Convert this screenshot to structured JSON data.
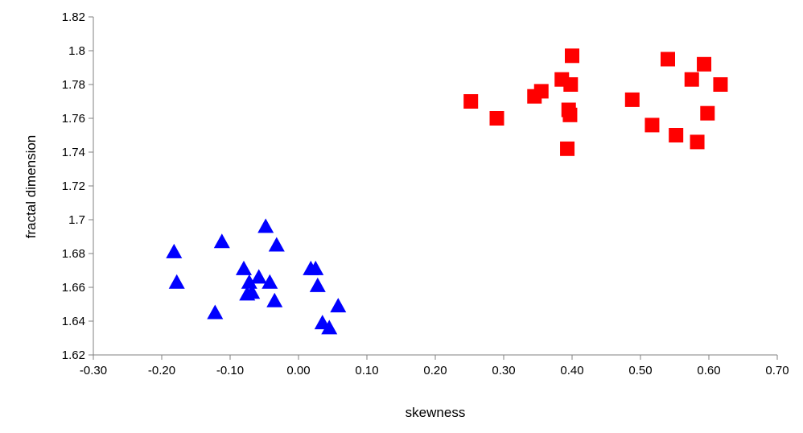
{
  "chart_data": {
    "type": "scatter",
    "title": "",
    "xlabel": "skewness",
    "ylabel": "fractal dimension",
    "xlim": [
      -0.3,
      0.7
    ],
    "ylim": [
      1.62,
      1.82
    ],
    "x_ticks": [
      -0.3,
      -0.2,
      -0.1,
      0.0,
      0.1,
      0.2,
      0.3,
      0.4,
      0.5,
      0.6,
      0.7
    ],
    "x_tick_labels": [
      "-0.30",
      "-0.20",
      "-0.10",
      "0.00",
      "0.10",
      "0.20",
      "0.30",
      "0.40",
      "0.50",
      "0.60",
      "0.70"
    ],
    "y_ticks": [
      1.62,
      1.64,
      1.66,
      1.68,
      1.7,
      1.72,
      1.74,
      1.76,
      1.78,
      1.8,
      1.82
    ],
    "y_tick_labels": [
      "1.62",
      "1.64",
      "1.66",
      "1.68",
      "1.7",
      "1.72",
      "1.74",
      "1.76",
      "1.78",
      "1.8",
      "1.82"
    ],
    "grid": false,
    "legend": "none",
    "series": [
      {
        "marker": "triangle",
        "color": "#0000ff",
        "points": [
          [
            -0.182,
            1.681
          ],
          [
            -0.178,
            1.663
          ],
          [
            -0.122,
            1.645
          ],
          [
            -0.112,
            1.687
          ],
          [
            -0.08,
            1.671
          ],
          [
            -0.075,
            1.656
          ],
          [
            -0.072,
            1.663
          ],
          [
            -0.068,
            1.657
          ],
          [
            -0.058,
            1.666
          ],
          [
            -0.048,
            1.696
          ],
          [
            -0.042,
            1.663
          ],
          [
            -0.035,
            1.652
          ],
          [
            -0.032,
            1.685
          ],
          [
            0.018,
            1.671
          ],
          [
            0.025,
            1.671
          ],
          [
            0.028,
            1.661
          ],
          [
            0.035,
            1.639
          ],
          [
            0.045,
            1.636
          ],
          [
            0.058,
            1.649
          ]
        ]
      },
      {
        "marker": "square",
        "color": "#ff0000",
        "points": [
          [
            0.252,
            1.77
          ],
          [
            0.29,
            1.76
          ],
          [
            0.345,
            1.773
          ],
          [
            0.355,
            1.776
          ],
          [
            0.385,
            1.783
          ],
          [
            0.393,
            1.742
          ],
          [
            0.395,
            1.765
          ],
          [
            0.397,
            1.762
          ],
          [
            0.398,
            1.78
          ],
          [
            0.4,
            1.797
          ],
          [
            0.488,
            1.771
          ],
          [
            0.517,
            1.756
          ],
          [
            0.54,
            1.795
          ],
          [
            0.552,
            1.75
          ],
          [
            0.575,
            1.783
          ],
          [
            0.583,
            1.746
          ],
          [
            0.593,
            1.792
          ],
          [
            0.598,
            1.763
          ],
          [
            0.617,
            1.78
          ]
        ]
      }
    ]
  }
}
